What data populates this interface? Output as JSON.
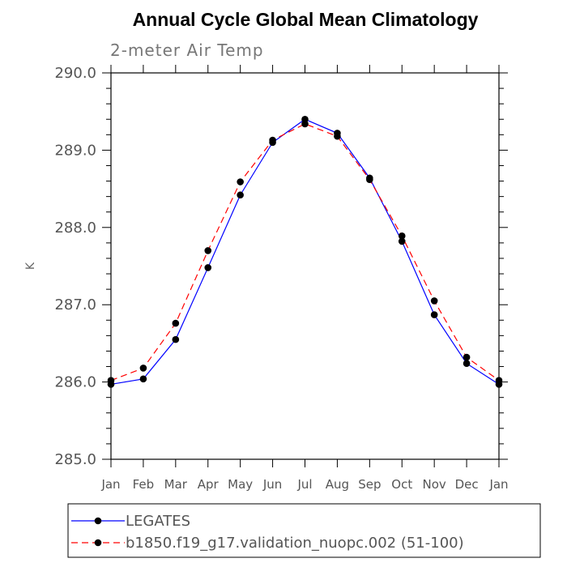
{
  "chart_data": {
    "type": "line",
    "title": "Annual Cycle Global Mean Climatology",
    "subtitle": "2-meter Air Temp",
    "xlabel": "",
    "ylabel": "K",
    "categories": [
      "Jan",
      "Feb",
      "Mar",
      "Apr",
      "May",
      "Jun",
      "Jul",
      "Aug",
      "Sep",
      "Oct",
      "Nov",
      "Dec",
      "Jan"
    ],
    "ylim": [
      285.0,
      290.0
    ],
    "yticks": [
      "285.0",
      "286.0",
      "287.0",
      "288.0",
      "289.0",
      "290.0"
    ],
    "series": [
      {
        "name": "LEGATES",
        "color": "#0000ff",
        "dash": "solid",
        "values": [
          285.97,
          286.04,
          286.55,
          287.48,
          288.42,
          289.1,
          289.4,
          289.22,
          288.64,
          287.82,
          286.87,
          286.24,
          285.97
        ]
      },
      {
        "name": "b1850.f19_g17.validation_nuopc.002 (51-100)",
        "color": "#ff0000",
        "dash": "dashed",
        "values": [
          286.02,
          286.18,
          286.76,
          287.7,
          288.59,
          289.13,
          289.34,
          289.18,
          288.62,
          287.89,
          287.05,
          286.32,
          286.02
        ]
      }
    ],
    "grid": false,
    "legend": "bottom-left"
  }
}
